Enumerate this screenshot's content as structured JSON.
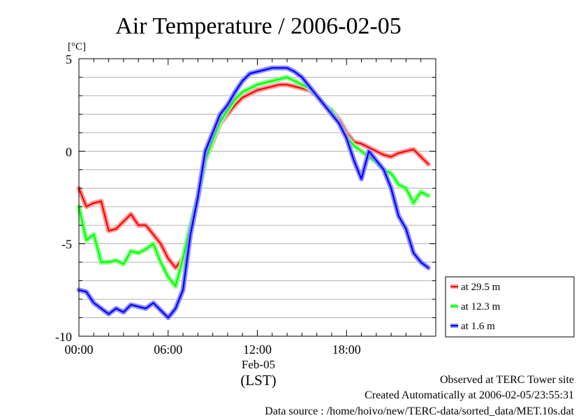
{
  "chart_data": {
    "type": "line",
    "title": "Air Temperature / 2006-02-05",
    "ylabel": "[°C]",
    "xlabel": "(LST)",
    "date_label": "Feb-05",
    "ylim": [
      -10,
      5
    ],
    "xlim": [
      0,
      24
    ],
    "grid": true,
    "legend_position": "right",
    "yticks": [
      {
        "value": 5,
        "label": "5"
      },
      {
        "value": 0,
        "label": "0"
      },
      {
        "value": -5,
        "label": "-5"
      },
      {
        "value": -10,
        "label": "-10"
      }
    ],
    "xticks": [
      {
        "value": 0,
        "label": "00:00"
      },
      {
        "value": 6,
        "label": "06:00"
      },
      {
        "value": 12,
        "label": "12:00"
      },
      {
        "value": 18,
        "label": "18:00"
      }
    ],
    "x": [
      0,
      0.5,
      1,
      1.5,
      2,
      2.5,
      3,
      3.5,
      4,
      4.5,
      5,
      5.5,
      6,
      6.5,
      7,
      7.5,
      8,
      8.5,
      9,
      9.5,
      10,
      10.5,
      11,
      11.5,
      12,
      12.5,
      13,
      13.5,
      14,
      14.5,
      15,
      15.5,
      16,
      16.5,
      17,
      17.5,
      18,
      18.5,
      19,
      19.5,
      20,
      20.5,
      21,
      21.5,
      22,
      22.5,
      23,
      23.5
    ],
    "series": [
      {
        "name": "at 29.5 m",
        "color": "#ff0000",
        "halo": "#ff9a9a",
        "values": [
          -2.0,
          -3.0,
          -2.8,
          -2.7,
          -4.3,
          -4.2,
          -3.8,
          -3.4,
          -4.0,
          -4.0,
          -4.5,
          -5.0,
          -5.8,
          -6.3,
          -5.8,
          -4.2,
          -2.5,
          -0.5,
          0.5,
          1.5,
          2.0,
          2.5,
          2.9,
          3.1,
          3.3,
          3.4,
          3.5,
          3.6,
          3.6,
          3.5,
          3.4,
          3.3,
          3.0,
          2.5,
          2.2,
          1.7,
          1.0,
          0.5,
          0.4,
          0.2,
          0.0,
          -0.2,
          -0.3,
          -0.1,
          0.0,
          0.1,
          -0.3,
          -0.7
        ]
      },
      {
        "name": "at 12.3 m",
        "color": "#00ff00",
        "halo": "#8fff8f",
        "values": [
          -3.0,
          -4.8,
          -4.5,
          -6.0,
          -6.0,
          -5.9,
          -6.1,
          -5.4,
          -5.5,
          -5.3,
          -5.0,
          -6.0,
          -6.8,
          -7.3,
          -5.8,
          -4.0,
          -2.5,
          -0.5,
          0.6,
          1.6,
          2.2,
          2.8,
          3.2,
          3.4,
          3.6,
          3.7,
          3.8,
          3.9,
          4.0,
          3.8,
          3.6,
          3.4,
          3.0,
          2.5,
          2.2,
          1.5,
          0.8,
          0.3,
          0.0,
          -0.3,
          -0.6,
          -1.0,
          -1.2,
          -1.8,
          -2.0,
          -2.8,
          -2.2,
          -2.4
        ]
      },
      {
        "name": "at 1.6 m",
        "color": "#0000ff",
        "halo": "#8d8dff",
        "values": [
          -7.5,
          -7.6,
          -8.2,
          -8.5,
          -8.8,
          -8.5,
          -8.7,
          -8.3,
          -8.4,
          -8.5,
          -8.2,
          -8.6,
          -9.0,
          -8.5,
          -7.5,
          -4.5,
          -2.5,
          0.0,
          1.0,
          2.0,
          2.5,
          3.2,
          3.8,
          4.2,
          4.3,
          4.4,
          4.5,
          4.5,
          4.5,
          4.3,
          4.0,
          3.5,
          3.0,
          2.5,
          2.0,
          1.5,
          0.7,
          -0.5,
          -1.5,
          0.0,
          -0.5,
          -1.0,
          -2.0,
          -3.5,
          -4.2,
          -5.5,
          -6.0,
          -6.3
        ]
      }
    ]
  },
  "footer": {
    "line1": "Observed at TERC Tower site",
    "line2": "Created Automatically at 2006-02-05/23:55:31",
    "line3": "Data source : /home/hoivo/new/TERC-data/sorted_data/MET.10s.dat"
  }
}
